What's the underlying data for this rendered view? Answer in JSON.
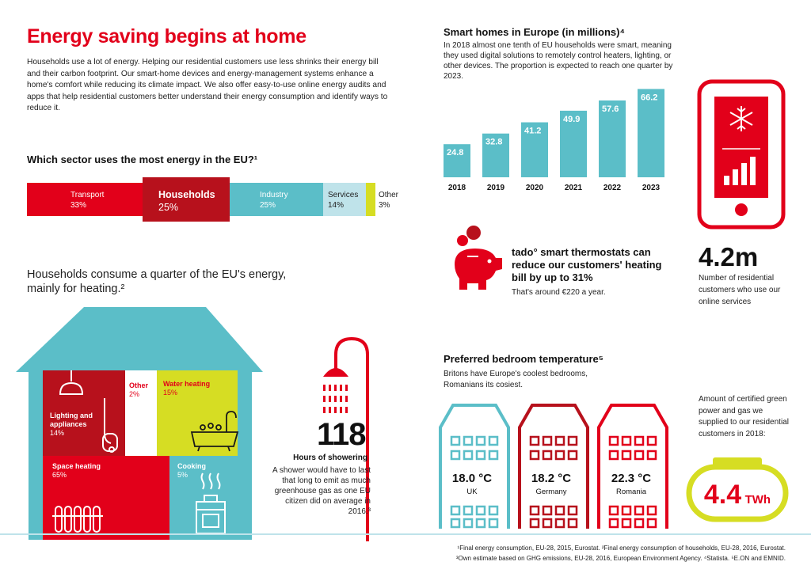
{
  "header": {
    "title": "Energy saving begins at home",
    "intro": "Households use a lot of energy. Helping our residential customers use less shrinks their energy bill and their carbon footprint. Our smart-home devices and energy-management systems enhance a home's comfort while reducing its climate impact. We also offer easy-to-use online energy audits and apps that help residential customers better understand their energy consumption and identify ways to reduce it."
  },
  "sector": {
    "question": "Which sector uses the most energy in the EU?¹",
    "items": [
      {
        "label": "Transport",
        "pct": "33%",
        "value": 33,
        "color": "#e2001a"
      },
      {
        "label": "Households",
        "pct": "25%",
        "value": 25,
        "color": "#b7111c"
      },
      {
        "label": "Industry",
        "pct": "25%",
        "value": 25,
        "color": "#5bbec8"
      },
      {
        "label": "Services",
        "pct": "14%",
        "value": 14,
        "color": "#bfe3ea"
      },
      {
        "label": "Other",
        "pct": "3%",
        "value": 3,
        "color": "#d6dd23"
      }
    ]
  },
  "household": {
    "subtitle": "Households consume a quarter of the EU's energy, mainly for heating.²",
    "items": [
      {
        "label": "Lighting and appliances",
        "pct": "14%",
        "value": 14
      },
      {
        "label": "Other",
        "pct": "2%",
        "value": 2
      },
      {
        "label": "Water heating",
        "pct": "15%",
        "value": 15
      },
      {
        "label": "Space heating",
        "pct": "65%",
        "value": 65
      },
      {
        "label": "Cooking",
        "pct": "5%",
        "value": 5
      }
    ]
  },
  "shower": {
    "number": "118",
    "heading": "Hours of showering",
    "text": "A shower would have to last that long to emit as much greenhouse gas as one EU citizen did on average in 2016.³"
  },
  "chart_data": {
    "type": "bar",
    "title": "Smart homes in Europe (in millions)⁴",
    "description": "In 2018 almost one tenth of EU households were smart, meaning they used digital solutions to remotely control heaters, lighting, or other devices. The proportion is expected to reach one quarter by 2023.",
    "categories": [
      "2018",
      "2019",
      "2020",
      "2021",
      "2022",
      "2023"
    ],
    "values": [
      24.8,
      32.8,
      41.2,
      49.9,
      57.6,
      66.2
    ],
    "value_labels": [
      "24.8",
      "32.8",
      "41.2",
      "49.9",
      "57.6",
      "66.2"
    ],
    "ylim": [
      0,
      70
    ],
    "color": "#5bbec8"
  },
  "tado": {
    "text": "tado° smart thermostats can reduce our customers' heating bill by up to 31%",
    "sub": "That's around €220 a year."
  },
  "customers": {
    "number": "4.2m",
    "text": "Number of residential customers who use our online services"
  },
  "temperature": {
    "title": "Preferred bedroom temperature⁵",
    "sub": "Britons have Europe's coolest bedrooms, Romanians its cosiest.",
    "items": [
      {
        "value": "18.0 °C",
        "country": "UK",
        "color": "#5bbec8"
      },
      {
        "value": "18.2 °C",
        "country": "Germany",
        "color": "#b7111c"
      },
      {
        "value": "22.3 °C",
        "country": "Romania",
        "color": "#e2001a"
      }
    ]
  },
  "green": {
    "text": "Amount of certified green power and gas we supplied to our residential customers in 2018:",
    "number": "4.4",
    "unit": "TWh"
  },
  "footnotes": {
    "line1": "¹Final energy consumption, EU-28, 2015, Eurostat. ²Final energy consumption of households, EU-28, 2016, Eurostat.",
    "line2": "³Own estimate based on GHG emissions, EU-28, 2016, European Environment Agency. ⁴Statista. ⁵E.ON and EMNID."
  },
  "colors": {
    "red": "#e2001a",
    "darkred": "#b7111c",
    "teal": "#5bbec8",
    "lightblue": "#bfe3ea",
    "yellow": "#d6dd23"
  }
}
